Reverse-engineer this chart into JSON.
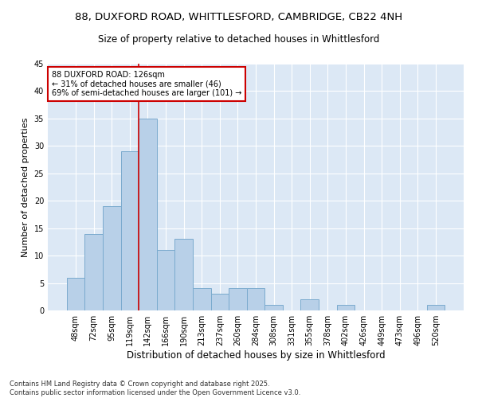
{
  "title_line1": "88, DUXFORD ROAD, WHITTLESFORD, CAMBRIDGE, CB22 4NH",
  "title_line2": "Size of property relative to detached houses in Whittlesford",
  "xlabel": "Distribution of detached houses by size in Whittlesford",
  "ylabel": "Number of detached properties",
  "categories": [
    "48sqm",
    "72sqm",
    "95sqm",
    "119sqm",
    "142sqm",
    "166sqm",
    "190sqm",
    "213sqm",
    "237sqm",
    "260sqm",
    "284sqm",
    "308sqm",
    "331sqm",
    "355sqm",
    "378sqm",
    "402sqm",
    "426sqm",
    "449sqm",
    "473sqm",
    "496sqm",
    "520sqm"
  ],
  "values": [
    6,
    14,
    19,
    29,
    35,
    11,
    13,
    4,
    3,
    4,
    4,
    1,
    0,
    2,
    0,
    1,
    0,
    0,
    0,
    0,
    1
  ],
  "bar_color": "#b8d0e8",
  "bar_edge_color": "#7aaace",
  "annotation_text": "88 DUXFORD ROAD: 126sqm\n← 31% of detached houses are smaller (46)\n69% of semi-detached houses are larger (101) →",
  "annotation_box_color": "white",
  "annotation_box_edge_color": "#cc0000",
  "vline_color": "#cc0000",
  "ylim": [
    0,
    45
  ],
  "yticks": [
    0,
    5,
    10,
    15,
    20,
    25,
    30,
    35,
    40,
    45
  ],
  "bg_color": "#dce8f5",
  "footer_line1": "Contains HM Land Registry data © Crown copyright and database right 2025.",
  "footer_line2": "Contains public sector information licensed under the Open Government Licence v3.0.",
  "title_fontsize": 9.5,
  "subtitle_fontsize": 8.5,
  "tick_fontsize": 7,
  "xlabel_fontsize": 8.5,
  "ylabel_fontsize": 8,
  "annot_fontsize": 7,
  "footer_fontsize": 6
}
